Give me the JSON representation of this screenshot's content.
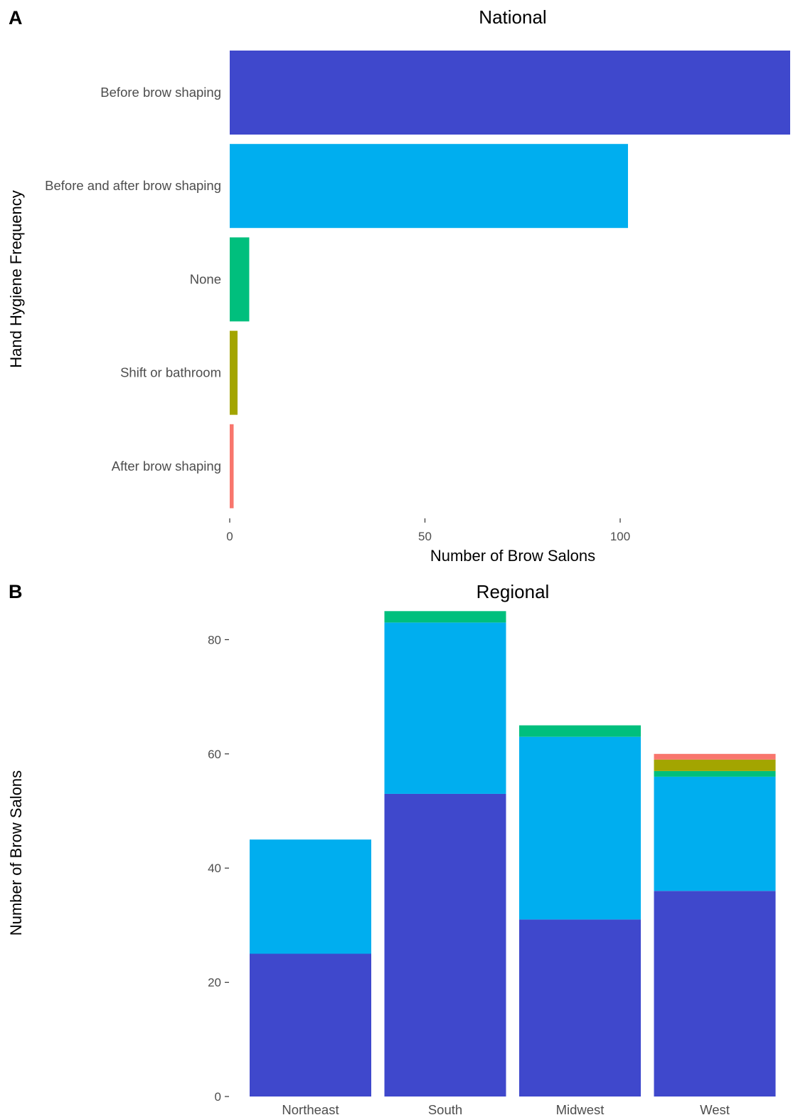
{
  "panels": {
    "a": {
      "letter": "A",
      "title": "National"
    },
    "b": {
      "letter": "B",
      "title": "Regional"
    }
  },
  "colors": {
    "Before brow shaping": "#3F48CC",
    "Before and after brow shaping": "#00AEEF",
    "None": "#00BF7D",
    "Shift or bathroom": "#A3A500",
    "After brow shaping": "#F8766D"
  },
  "chart_data": [
    {
      "type": "bar",
      "orientation": "horizontal",
      "title": "National",
      "xlabel": "Number of Brow Salons",
      "ylabel": "Hand Hygiene Frequency",
      "xlim": [
        0,
        144
      ],
      "xticks": [
        0,
        50,
        100
      ],
      "categories": [
        "Before brow shaping",
        "Before and after brow shaping",
        "None",
        "Shift or bathroom",
        "After brow shaping"
      ],
      "values": [
        145,
        102,
        5,
        2,
        1
      ],
      "grid": false,
      "legend": "none"
    },
    {
      "type": "bar",
      "stacked": true,
      "title": "Regional",
      "xlabel": "",
      "ylabel": "Number of Brow Salons",
      "ylim": [
        0,
        88
      ],
      "yticks": [
        0,
        20,
        40,
        60,
        80
      ],
      "categories": [
        "Northeast",
        "South",
        "Midwest",
        "West"
      ],
      "series": [
        {
          "category": "Before brow shaping",
          "values": [
            25,
            53,
            31,
            36
          ]
        },
        {
          "category": "Before and after brow shaping",
          "values": [
            20,
            30,
            32,
            20
          ]
        },
        {
          "category": "None",
          "values": [
            0,
            2,
            2,
            1
          ]
        },
        {
          "category": "Shift or bathroom",
          "values": [
            0,
            0,
            0,
            2
          ]
        },
        {
          "category": "After brow shaping",
          "values": [
            0,
            0,
            0,
            1
          ]
        }
      ],
      "grid": false,
      "legend": "none"
    }
  ]
}
